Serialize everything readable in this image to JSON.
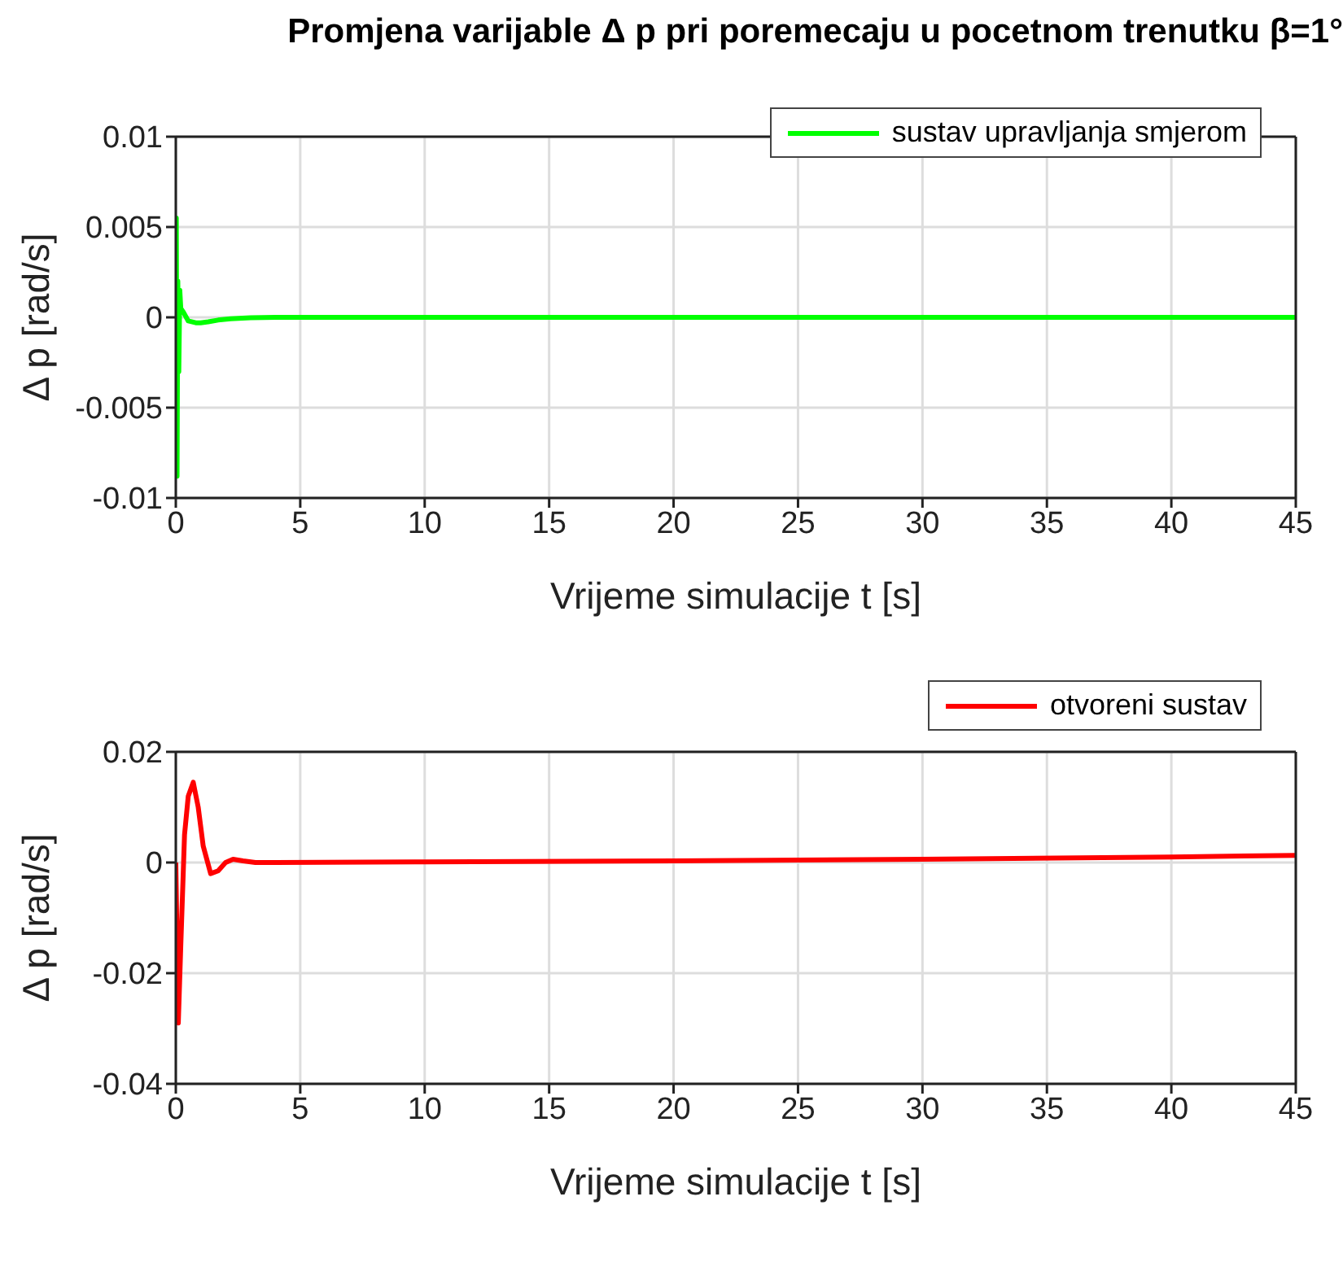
{
  "chart_data": [
    {
      "type": "line",
      "title": "Promjena varijable Δ p  pri poremecaju u pocetnom trenutku β=1°",
      "xlabel": "Vrijeme simulacije t [s]",
      "ylabel": "Δ p [rad/s]",
      "x": [
        0,
        0.02,
        0.05,
        0.08,
        0.12,
        0.16,
        0.2,
        0.3,
        0.5,
        0.8,
        1.0,
        1.3,
        1.7,
        2.2,
        3,
        4,
        10,
        20,
        30,
        45
      ],
      "series": [
        {
          "name": "sustav upravljanja smjerom",
          "color": "#00ff00",
          "values": [
            0,
            0.0055,
            -0.0088,
            0.002,
            -0.003,
            0.0015,
            0.0005,
            0.0003,
            -0.0002,
            -0.0003,
            -0.0003,
            -0.00025,
            -0.00015,
            -8e-05,
            -2e-05,
            0,
            0,
            0,
            0,
            0
          ]
        }
      ],
      "xlim": [
        0,
        45
      ],
      "xticks": [
        0,
        5,
        10,
        15,
        20,
        25,
        30,
        35,
        40,
        45
      ],
      "ylim": [
        -0.01,
        0.01
      ],
      "yticks": [
        -0.01,
        -0.005,
        0,
        0.005,
        0.01
      ],
      "grid": true,
      "legend": "top right"
    },
    {
      "type": "line",
      "xlabel": "Vrijeme simulacije t [s]",
      "ylabel": "Δ p [rad/s]",
      "x": [
        0,
        0.1,
        0.2,
        0.35,
        0.5,
        0.7,
        0.9,
        1.1,
        1.4,
        1.7,
        2.0,
        2.3,
        2.7,
        3.2,
        4,
        10,
        20,
        30,
        40,
        45
      ],
      "series": [
        {
          "name": "otvoreni sustav",
          "color": "#ff0000",
          "values": [
            0,
            -0.029,
            -0.015,
            0.005,
            0.012,
            0.0145,
            0.01,
            0.003,
            -0.002,
            -0.0015,
            0,
            0.0006,
            0.0003,
            0,
            0,
            0.0001,
            0.0003,
            0.0006,
            0.001,
            0.0013
          ]
        }
      ],
      "xlim": [
        0,
        45
      ],
      "xticks": [
        0,
        5,
        10,
        15,
        20,
        25,
        30,
        35,
        40,
        45
      ],
      "ylim": [
        -0.04,
        0.02
      ],
      "yticks": [
        -0.04,
        -0.02,
        0,
        0.02
      ],
      "grid": true,
      "legend": "top right"
    }
  ]
}
